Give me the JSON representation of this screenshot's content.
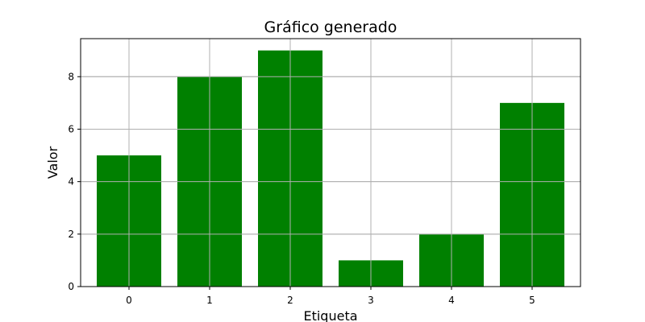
{
  "chart_data": {
    "type": "bar",
    "title": "Gráfico generado",
    "xlabel": "Etiqueta",
    "ylabel": "Valor",
    "categories": [
      "0",
      "1",
      "2",
      "3",
      "4",
      "5"
    ],
    "values": [
      5,
      8,
      9,
      1,
      2,
      7
    ],
    "ylim": [
      0,
      9.45
    ],
    "yticks": [
      0,
      2,
      4,
      6,
      8
    ],
    "grid": true,
    "bar_color": "#008000",
    "legend": "none"
  }
}
